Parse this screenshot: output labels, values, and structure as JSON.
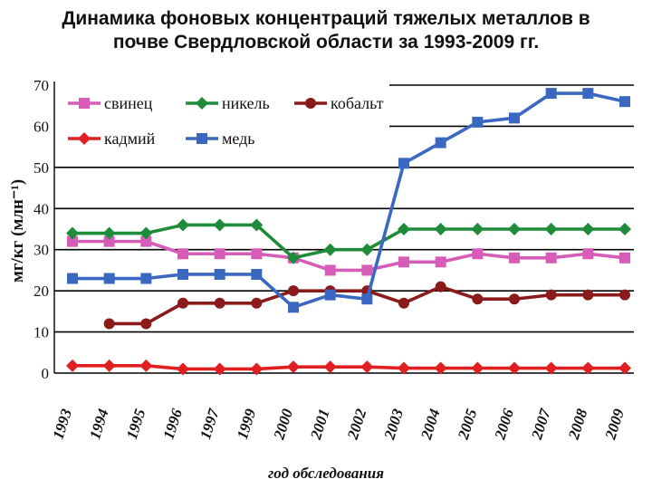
{
  "title_lines": [
    "Динамика фоновых концентраций тяжелых металлов в",
    "почве Свердловской области за 1993-2009 гг."
  ],
  "chart_data": {
    "type": "line",
    "ylabel": "мг/кг (млн⁻¹)",
    "xlabel": "год обследования",
    "ylim": [
      0,
      70
    ],
    "yticks": [
      0,
      10,
      20,
      30,
      40,
      50,
      60,
      70
    ],
    "categories": [
      "1993",
      "1994",
      "1995",
      "1996",
      "1997",
      "1999",
      "2000",
      "2001",
      "2002",
      "2003",
      "2004",
      "2005",
      "2006",
      "2007",
      "2008",
      "2009"
    ],
    "grid": "horizontal",
    "legend_placement": "top-left",
    "series": [
      {
        "name": "свинец",
        "color": "#d65cb8",
        "marker": "square",
        "values": [
          32,
          32,
          32,
          29,
          29,
          29,
          28,
          25,
          25,
          27,
          27,
          29,
          28,
          28,
          29,
          28
        ]
      },
      {
        "name": "никель",
        "color": "#1e8c3a",
        "marker": "diamond",
        "values": [
          34,
          34,
          34,
          36,
          36,
          36,
          28,
          30,
          30,
          35,
          35,
          35,
          35,
          35,
          35,
          35
        ]
      },
      {
        "name": "кобальт",
        "color": "#8b1a1a",
        "marker": "circle",
        "values": [
          null,
          12,
          12,
          17,
          17,
          17,
          20,
          20,
          20,
          17,
          21,
          18,
          18,
          19,
          19,
          19
        ]
      },
      {
        "name": "кадмий",
        "color": "#e02020",
        "marker": "diamond",
        "values": [
          1.8,
          1.8,
          1.8,
          1.0,
          1.0,
          1.0,
          1.5,
          1.5,
          1.5,
          1.2,
          1.2,
          1.2,
          1.2,
          1.2,
          1.2,
          1.2
        ]
      },
      {
        "name": "медь",
        "color": "#3a68c0",
        "marker": "square",
        "values": [
          23,
          23,
          23,
          24,
          24,
          24,
          16,
          19,
          18,
          51,
          56,
          61,
          62,
          68,
          68,
          66
        ]
      }
    ]
  }
}
